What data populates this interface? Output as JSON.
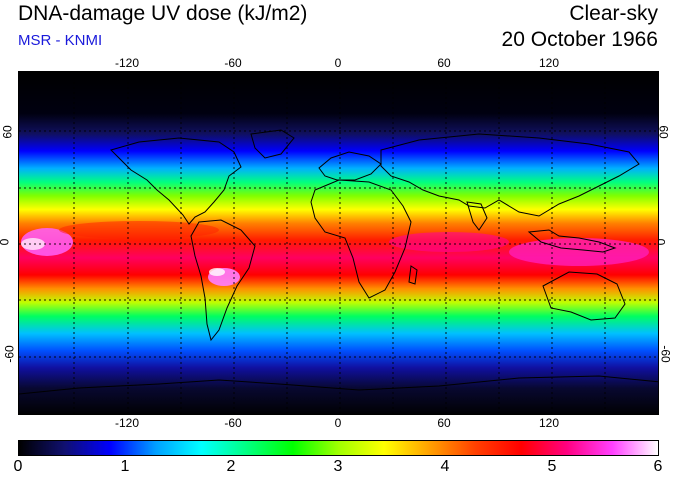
{
  "header": {
    "title": "DNA-damage UV dose (kJ/m2)",
    "subtitle": "MSR - KNMI",
    "scenario": "Clear-sky",
    "date": "20 October 1966"
  },
  "map": {
    "projection": "equirectangular",
    "lon_range": [
      -180,
      180
    ],
    "lat_range": [
      -90,
      90
    ],
    "lon_ticks": [
      "-120",
      "-60",
      "0",
      "60",
      "120"
    ],
    "lat_ticks": [
      "60",
      "0",
      "-60"
    ],
    "grid_lines": "dotted, every 30 degrees"
  },
  "colorbar": {
    "labels": [
      "0",
      "1",
      "2",
      "3",
      "4",
      "5",
      "6"
    ],
    "colors": [
      "#000000",
      "#101070",
      "#0000ff",
      "#00a0ff",
      "#00ffff",
      "#00ff80",
      "#00ff00",
      "#a0ff00",
      "#ffff00",
      "#ffa000",
      "#ff4000",
      "#ff0000",
      "#ff0080",
      "#ff40ff",
      "#ffffff"
    ]
  }
}
